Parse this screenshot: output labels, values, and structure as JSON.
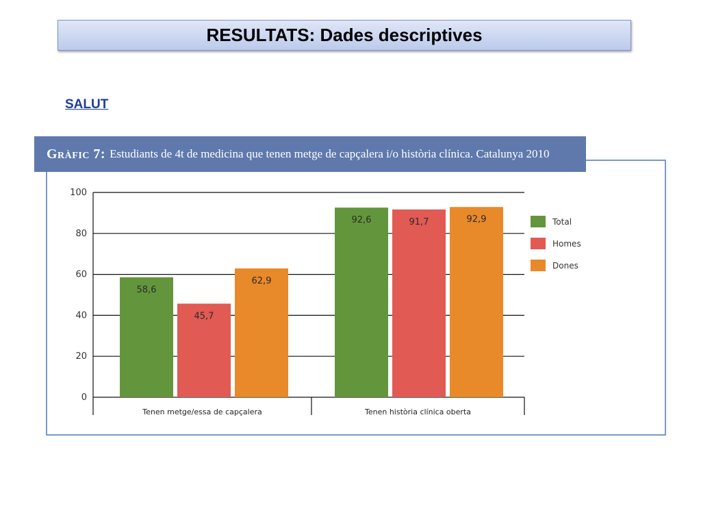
{
  "slide": {
    "title": "RESULTATS: Dades descriptives",
    "section": "SALUT"
  },
  "figure": {
    "caption_lead": "Gràfic 7:",
    "caption_text": "Estudiants de 4t de medicina que tenen metge de capçalera i/o història clínica. Catalunya 2010"
  },
  "chart_data": {
    "type": "bar",
    "title": "Gràfic 7: Estudiants de 4t de medicina que tenen metge de capçalera i/o història clínica. Catalunya 2010",
    "categories": [
      "Tenen metge/essa de capçalera",
      "Tenen història clínica oberta"
    ],
    "series": [
      {
        "name": "Total",
        "values": [
          58.6,
          92.6
        ],
        "labels": [
          "58,6",
          "92,6"
        ],
        "color": "#63963c"
      },
      {
        "name": "Homes",
        "values": [
          45.7,
          91.7
        ],
        "labels": [
          "45,7",
          "91,7"
        ],
        "color": "#e15a53"
      },
      {
        "name": "Dones",
        "values": [
          62.9,
          92.9
        ],
        "labels": [
          "62,9",
          "92,9"
        ],
        "color": "#e8892a"
      }
    ],
    "yticks": [
      "0",
      "20",
      "40",
      "60",
      "80",
      "100"
    ],
    "ylim": [
      0,
      100
    ],
    "grid": true,
    "legend_position": "right"
  }
}
